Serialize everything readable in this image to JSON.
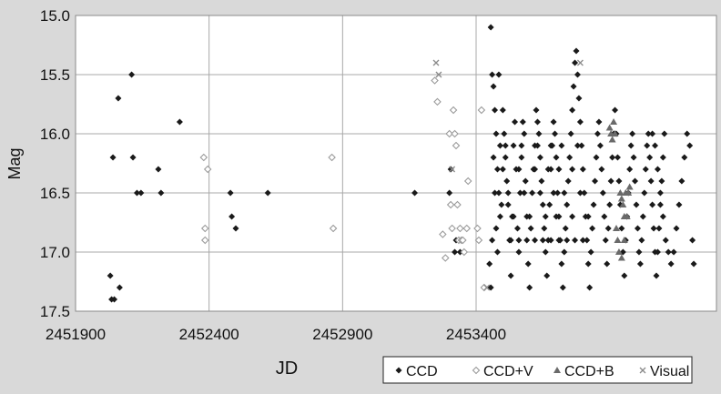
{
  "chart_data": {
    "type": "scatter",
    "xlabel": "JD",
    "ylabel": "Mag",
    "xlim": [
      2451900,
      2454300
    ],
    "ylim": [
      15.0,
      17.5
    ],
    "y_inverted": true,
    "grid": true,
    "legend_position": "bottom-right",
    "x_ticks": [
      "2451900",
      "2452400",
      "2452900",
      "2453400"
    ],
    "x_tick_values": [
      2451900,
      2452400,
      2452900,
      2453400
    ],
    "y_ticks": [
      "15.0",
      "15.5",
      "16.0",
      "16.5",
      "17.0",
      "17.5"
    ],
    "y_tick_values": [
      15.0,
      15.5,
      16.0,
      16.5,
      17.0,
      17.5
    ],
    "colors": {
      "background": "#d9d9d9",
      "plot_area": "#ffffff",
      "grid": "#a8a8a8",
      "ccd": "#1a1a1a",
      "ccd_v": "#9a9a9a",
      "ccd_b": "#6a6a6a",
      "visual": "#8a8a8a"
    },
    "series": [
      {
        "name": "CCD",
        "marker": "diamond-filled",
        "points": [
          [
            2452030,
            17.2
          ],
          [
            2452035,
            17.4
          ],
          [
            2452045,
            17.4
          ],
          [
            2452065,
            17.3
          ],
          [
            2452040,
            16.2
          ],
          [
            2452060,
            15.7
          ],
          [
            2452110,
            15.5
          ],
          [
            2452115,
            16.2
          ],
          [
            2452130,
            16.5
          ],
          [
            2452145,
            16.5
          ],
          [
            2452210,
            16.3
          ],
          [
            2452220,
            16.5
          ],
          [
            2452290,
            15.9
          ],
          [
            2452480,
            16.5
          ],
          [
            2452485,
            16.7
          ],
          [
            2452500,
            16.8
          ],
          [
            2452620,
            16.5
          ],
          [
            2453170,
            16.5
          ],
          [
            2453300,
            16.5
          ],
          [
            2453305,
            16.3
          ],
          [
            2453320,
            17.0
          ],
          [
            2453325,
            16.9
          ],
          [
            2453340,
            17.0
          ],
          [
            2453455,
            15.1
          ],
          [
            2453460,
            15.5
          ],
          [
            2453465,
            15.6
          ],
          [
            2453470,
            15.8
          ],
          [
            2453475,
            16.0
          ],
          [
            2453480,
            16.3
          ],
          [
            2453485,
            16.5
          ],
          [
            2453490,
            16.7
          ],
          [
            2453450,
            17.1
          ],
          [
            2453455,
            17.3
          ],
          [
            2453460,
            16.9
          ],
          [
            2453465,
            16.2
          ],
          [
            2453470,
            16.5
          ],
          [
            2453475,
            16.8
          ],
          [
            2453480,
            17.0
          ],
          [
            2453485,
            15.5
          ],
          [
            2453490,
            16.1
          ],
          [
            2453495,
            16.6
          ],
          [
            2453500,
            15.8
          ],
          [
            2453505,
            16.0
          ],
          [
            2453510,
            16.2
          ],
          [
            2453515,
            16.4
          ],
          [
            2453520,
            16.6
          ],
          [
            2453525,
            16.9
          ],
          [
            2453530,
            17.2
          ],
          [
            2453535,
            16.7
          ],
          [
            2453540,
            16.1
          ],
          [
            2453545,
            15.9
          ],
          [
            2453550,
            16.3
          ],
          [
            2453555,
            16.8
          ],
          [
            2453560,
            17.0
          ],
          [
            2453565,
            16.5
          ],
          [
            2453570,
            16.2
          ],
          [
            2453575,
            15.9
          ],
          [
            2453580,
            16.0
          ],
          [
            2453585,
            16.4
          ],
          [
            2453590,
            16.7
          ],
          [
            2453595,
            17.1
          ],
          [
            2453600,
            17.3
          ],
          [
            2453605,
            16.8
          ],
          [
            2453610,
            16.5
          ],
          [
            2453615,
            16.3
          ],
          [
            2453620,
            16.1
          ],
          [
            2453625,
            15.8
          ],
          [
            2453630,
            15.9
          ],
          [
            2453635,
            16.0
          ],
          [
            2453640,
            16.2
          ],
          [
            2453645,
            16.4
          ],
          [
            2453650,
            16.6
          ],
          [
            2453655,
            16.8
          ],
          [
            2453660,
            17.0
          ],
          [
            2453665,
            17.2
          ],
          [
            2453670,
            16.9
          ],
          [
            2453675,
            16.6
          ],
          [
            2453680,
            16.3
          ],
          [
            2453685,
            16.1
          ],
          [
            2453690,
            15.9
          ],
          [
            2453695,
            16.0
          ],
          [
            2453700,
            16.2
          ],
          [
            2453705,
            16.5
          ],
          [
            2453710,
            16.7
          ],
          [
            2453715,
            16.9
          ],
          [
            2453720,
            17.1
          ],
          [
            2453725,
            17.3
          ],
          [
            2453730,
            17.0
          ],
          [
            2453735,
            16.8
          ],
          [
            2453740,
            16.6
          ],
          [
            2453745,
            16.4
          ],
          [
            2453750,
            16.2
          ],
          [
            2453755,
            16.0
          ],
          [
            2453760,
            15.8
          ],
          [
            2453765,
            15.6
          ],
          [
            2453770,
            15.4
          ],
          [
            2453775,
            15.3
          ],
          [
            2453780,
            15.5
          ],
          [
            2453785,
            15.7
          ],
          [
            2453790,
            15.9
          ],
          [
            2453795,
            16.1
          ],
          [
            2453800,
            16.3
          ],
          [
            2453805,
            16.5
          ],
          [
            2453810,
            16.7
          ],
          [
            2453815,
            16.9
          ],
          [
            2453820,
            17.1
          ],
          [
            2453825,
            17.3
          ],
          [
            2453830,
            17.0
          ],
          [
            2453835,
            16.8
          ],
          [
            2453840,
            16.6
          ],
          [
            2453845,
            16.4
          ],
          [
            2453850,
            16.2
          ],
          [
            2453855,
            16.0
          ],
          [
            2453860,
            15.9
          ],
          [
            2453865,
            16.1
          ],
          [
            2453870,
            16.3
          ],
          [
            2453875,
            16.5
          ],
          [
            2453880,
            16.7
          ],
          [
            2453885,
            16.9
          ],
          [
            2453890,
            17.1
          ],
          [
            2453895,
            16.8
          ],
          [
            2453900,
            16.6
          ],
          [
            2453905,
            16.4
          ],
          [
            2453910,
            16.2
          ],
          [
            2453915,
            16.0
          ],
          [
            2453920,
            15.8
          ],
          [
            2453925,
            16.0
          ],
          [
            2453930,
            16.2
          ],
          [
            2453935,
            16.4
          ],
          [
            2453940,
            16.6
          ],
          [
            2453945,
            16.8
          ],
          [
            2453950,
            17.0
          ],
          [
            2453955,
            17.2
          ],
          [
            2453960,
            16.9
          ],
          [
            2453965,
            16.7
          ],
          [
            2453970,
            16.5
          ],
          [
            2453975,
            16.3
          ],
          [
            2453980,
            16.1
          ],
          [
            2453985,
            16.0
          ],
          [
            2453990,
            16.2
          ],
          [
            2453995,
            16.4
          ],
          [
            2454000,
            16.6
          ],
          [
            2454005,
            16.8
          ],
          [
            2454010,
            17.0
          ],
          [
            2454015,
            17.1
          ],
          [
            2454020,
            16.9
          ],
          [
            2454025,
            16.7
          ],
          [
            2454030,
            16.5
          ],
          [
            2454035,
            16.3
          ],
          [
            2454040,
            16.1
          ],
          [
            2454045,
            16.0
          ],
          [
            2454050,
            16.2
          ],
          [
            2454055,
            16.4
          ],
          [
            2454060,
            16.6
          ],
          [
            2454065,
            16.8
          ],
          [
            2454070,
            17.0
          ],
          [
            2454075,
            17.2
          ],
          [
            2454080,
            17.0
          ],
          [
            2454085,
            16.8
          ],
          [
            2454090,
            16.6
          ],
          [
            2454095,
            16.4
          ],
          [
            2454100,
            16.2
          ],
          [
            2454105,
            16.0
          ],
          [
            2453530,
            16.9
          ],
          [
            2453560,
            16.9
          ],
          [
            2453590,
            16.9
          ],
          [
            2453620,
            16.9
          ],
          [
            2453650,
            16.9
          ],
          [
            2453680,
            16.9
          ],
          [
            2453710,
            16.9
          ],
          [
            2453740,
            16.9
          ],
          [
            2453770,
            16.9
          ],
          [
            2453800,
            16.9
          ],
          [
            2453540,
            16.7
          ],
          [
            2453600,
            16.7
          ],
          [
            2453660,
            16.7
          ],
          [
            2453700,
            16.7
          ],
          [
            2453760,
            16.7
          ],
          [
            2453820,
            16.7
          ],
          [
            2453520,
            16.5
          ],
          [
            2453580,
            16.5
          ],
          [
            2453640,
            16.5
          ],
          [
            2453690,
            16.5
          ],
          [
            2453730,
            16.5
          ],
          [
            2453790,
            16.5
          ],
          [
            2453510,
            16.1
          ],
          [
            2453570,
            16.1
          ],
          [
            2453630,
            16.1
          ],
          [
            2453680,
            16.1
          ],
          [
            2453720,
            16.1
          ],
          [
            2453780,
            16.1
          ],
          [
            2453500,
            16.3
          ],
          [
            2453560,
            16.3
          ],
          [
            2453620,
            16.3
          ],
          [
            2453670,
            16.3
          ],
          [
            2453710,
            16.3
          ],
          [
            2453760,
            16.3
          ],
          [
            2454060,
            16.0
          ],
          [
            2454070,
            16.1
          ],
          [
            2454080,
            16.3
          ],
          [
            2454090,
            16.5
          ],
          [
            2454100,
            16.7
          ],
          [
            2454110,
            16.9
          ],
          [
            2454120,
            17.0
          ],
          [
            2454130,
            17.1
          ],
          [
            2454140,
            17.0
          ],
          [
            2454150,
            16.8
          ],
          [
            2454160,
            16.6
          ],
          [
            2454170,
            16.4
          ],
          [
            2454180,
            16.2
          ],
          [
            2454190,
            16.0
          ],
          [
            2454200,
            16.1
          ],
          [
            2454210,
            16.9
          ],
          [
            2454215,
            17.1
          ]
        ]
      },
      {
        "name": "CCD+V",
        "marker": "diamond-open",
        "points": [
          [
            2452380,
            16.2
          ],
          [
            2452385,
            16.8
          ],
          [
            2452385,
            16.9
          ],
          [
            2452395,
            16.3
          ],
          [
            2452860,
            16.2
          ],
          [
            2452865,
            16.8
          ],
          [
            2453245,
            15.55
          ],
          [
            2453255,
            15.73
          ],
          [
            2453275,
            16.85
          ],
          [
            2453285,
            17.05
          ],
          [
            2453300,
            16.0
          ],
          [
            2453305,
            16.6
          ],
          [
            2453310,
            16.8
          ],
          [
            2453315,
            15.8
          ],
          [
            2453320,
            16.0
          ],
          [
            2453325,
            16.1
          ],
          [
            2453330,
            16.6
          ],
          [
            2453335,
            16.9
          ],
          [
            2453340,
            16.8
          ],
          [
            2453345,
            16.9
          ],
          [
            2453350,
            16.9
          ],
          [
            2453355,
            17.0
          ],
          [
            2453365,
            16.8
          ],
          [
            2453370,
            16.4
          ],
          [
            2453405,
            16.8
          ],
          [
            2453410,
            16.9
          ],
          [
            2453420,
            15.8
          ],
          [
            2453430,
            17.3
          ]
        ]
      },
      {
        "name": "CCD+B",
        "marker": "triangle",
        "points": [
          [
            2453900,
            15.95
          ],
          [
            2453905,
            16.0
          ],
          [
            2453910,
            16.05
          ],
          [
            2453915,
            15.9
          ],
          [
            2453920,
            16.0
          ],
          [
            2453940,
            16.5
          ],
          [
            2453945,
            16.55
          ],
          [
            2453950,
            16.6
          ],
          [
            2453955,
            16.7
          ],
          [
            2453960,
            16.5
          ],
          [
            2453925,
            16.8
          ],
          [
            2453930,
            16.9
          ],
          [
            2453935,
            17.0
          ],
          [
            2453945,
            17.05
          ],
          [
            2453955,
            16.9
          ],
          [
            2453965,
            16.7
          ],
          [
            2453970,
            16.5
          ],
          [
            2453975,
            16.45
          ]
        ]
      },
      {
        "name": "Visual",
        "marker": "x",
        "points": [
          [
            2453250,
            15.4
          ],
          [
            2453260,
            15.5
          ],
          [
            2453310,
            16.3
          ],
          [
            2453440,
            17.3
          ],
          [
            2453790,
            15.4
          ]
        ]
      }
    ]
  }
}
